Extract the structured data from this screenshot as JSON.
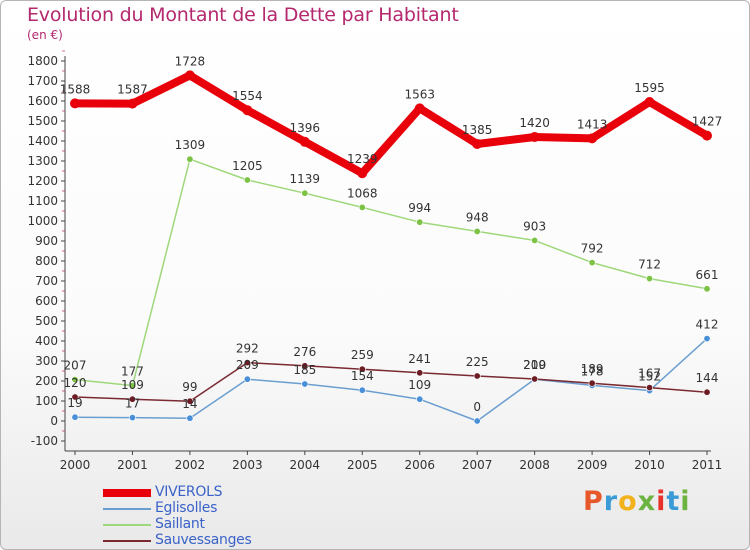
{
  "title": "Evolution du Montant de la Dette par Habitant",
  "unit_label": "(en €)",
  "logo_text": "Proxiti",
  "logo_colors": [
    "#e6582a",
    "#3a9bd6",
    "#f2b21c",
    "#6cb33f",
    "#e8332a",
    "#3a9bd6",
    "#6cb33f"
  ],
  "chart_data": {
    "type": "line",
    "x": [
      "2000",
      "2001",
      "2002",
      "2003",
      "2004",
      "2005",
      "2006",
      "2007",
      "2008",
      "2009",
      "2010",
      "2011"
    ],
    "ylim": [
      -100,
      1800
    ],
    "yticks": [
      -100,
      0,
      100,
      200,
      300,
      400,
      500,
      600,
      700,
      800,
      900,
      1000,
      1100,
      1200,
      1300,
      1400,
      1500,
      1600,
      1700,
      1800
    ],
    "grid": false,
    "legend_position": "bottom-left",
    "series": [
      {
        "name": "VIVEROLS",
        "color": "#e8000b",
        "width": 8,
        "marker": "#e8000b",
        "labels": true,
        "values": [
          1588,
          1587,
          1728,
          1554,
          1396,
          1239,
          1563,
          1385,
          1420,
          1413,
          1595,
          1427
        ]
      },
      {
        "name": "Eglisolles",
        "color": "#6a9ed0",
        "width": 1.5,
        "marker": "#4a90d9",
        "labels": true,
        "values": [
          19,
          17,
          14,
          209,
          185,
          154,
          109,
          0,
          209,
          178,
          152,
          412
        ]
      },
      {
        "name": "Saillant",
        "color": "#9ed87a",
        "width": 1.5,
        "marker": "#7cc244",
        "labels": true,
        "values": [
          207,
          177,
          1309,
          1205,
          1139,
          1068,
          994,
          948,
          903,
          792,
          712,
          661
        ]
      },
      {
        "name": "Sauvessanges",
        "color": "#7a2a30",
        "width": 1.5,
        "marker": "#6b1c24",
        "labels": true,
        "values": [
          120,
          109,
          99,
          292,
          276,
          259,
          241,
          225,
          210,
          189,
          167,
          144
        ]
      }
    ]
  }
}
